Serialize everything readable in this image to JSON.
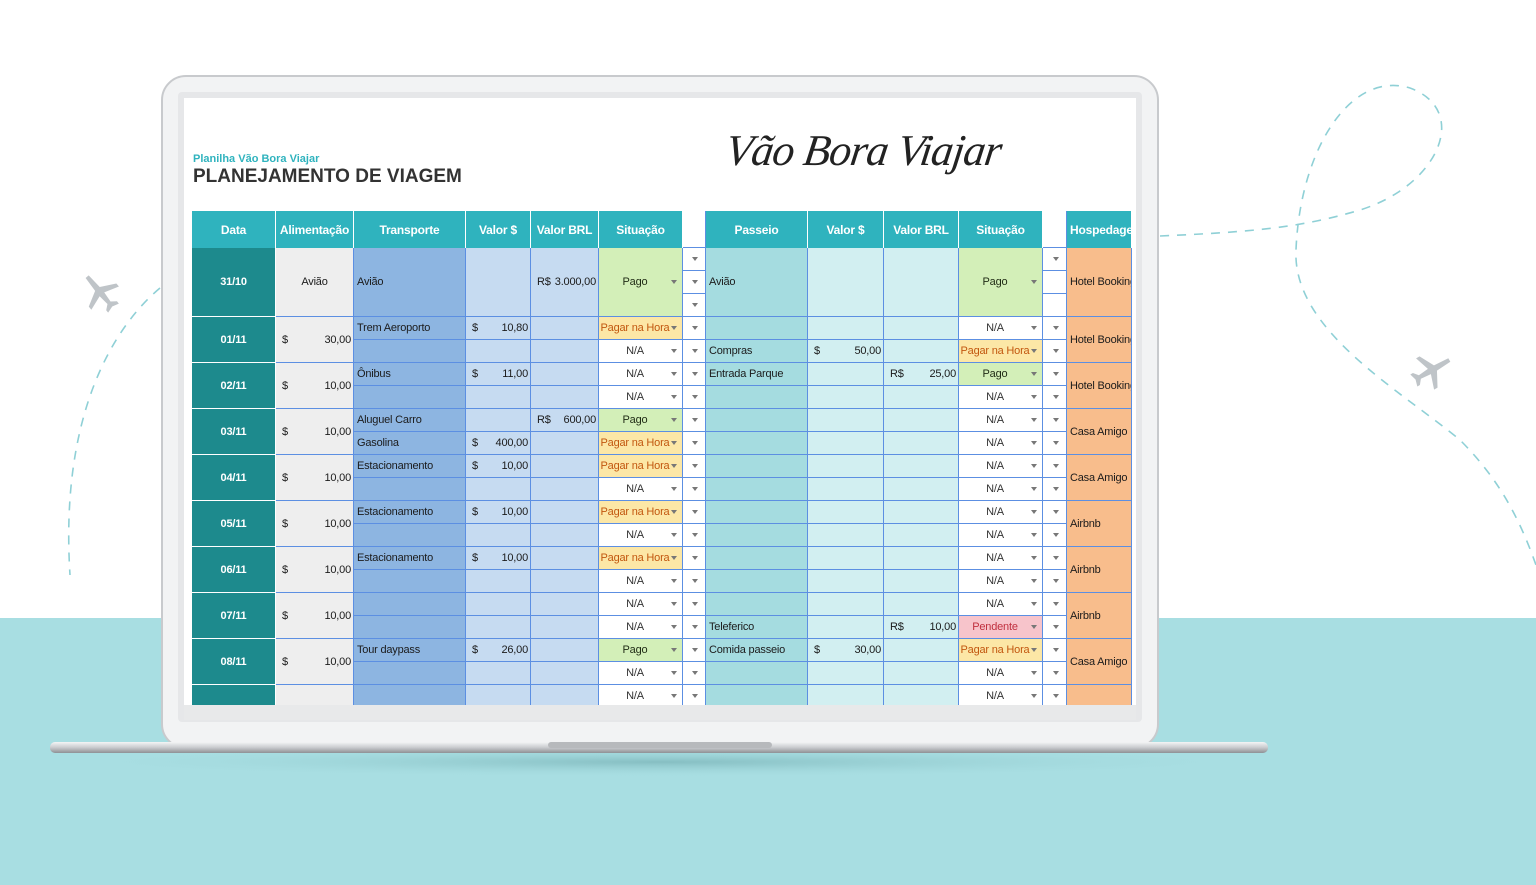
{
  "header": {
    "subtitle": "Planilha Vão Bora Viajar",
    "title": "PLANEJAMENTO DE VIAGEM",
    "logo": "Vão Bora Viajar"
  },
  "status_colors": {
    "Pago": {
      "bg": "#d3efb8",
      "fg": "#1f2a14"
    },
    "Pagar na Hora": {
      "bg": "#fce7a6",
      "fg": "#c2570f"
    },
    "N/A": {
      "bg": "#ffffff",
      "fg": "#333333"
    },
    "Pendente": {
      "bg": "#f7c4cb",
      "fg": "#c0303f"
    }
  },
  "table": {
    "columns": [
      "Data",
      "Alimentação",
      "Transporte",
      "Valor $",
      "Valor BRL",
      "Situação",
      "Passeio",
      "Valor $",
      "Valor BRL",
      "Situação",
      "Hospedagem"
    ],
    "rows": [
      {
        "date": "31/10",
        "alimentacao": "Avião",
        "hospedagem": "Hotel Booking",
        "lines": [
          {
            "transporte": "Avião",
            "valor_brl": {
              "currency": "R$",
              "amount": "3.000,00"
            },
            "situacao": "Pago",
            "passeio": "Avião",
            "passeio_situacao": "Pago"
          }
        ]
      },
      {
        "date": "01/11",
        "alimentacao": {
          "currency": "$",
          "amount": "30,00"
        },
        "hospedagem": "Hotel Booking",
        "lines": [
          {
            "transporte": "Trem Aeroporto",
            "valor_usd": {
              "currency": "$",
              "amount": "10,80"
            },
            "situacao": "Pagar na Hora",
            "passeio_situacao": "N/A"
          },
          {
            "situacao": "N/A",
            "passeio": "Compras",
            "passeio_valor_usd": {
              "currency": "$",
              "amount": "50,00"
            },
            "passeio_situacao": "Pagar na Hora"
          }
        ]
      },
      {
        "date": "02/11",
        "alimentacao": {
          "currency": "$",
          "amount": "10,00"
        },
        "hospedagem": "Hotel Booking",
        "lines": [
          {
            "transporte": "Ônibus",
            "valor_usd": {
              "currency": "$",
              "amount": "11,00"
            },
            "situacao": "N/A",
            "passeio": "Entrada Parque",
            "passeio_valor_brl": {
              "currency": "R$",
              "amount": "25,00"
            },
            "passeio_situacao": "Pago"
          },
          {
            "situacao": "N/A",
            "passeio_situacao": "N/A"
          }
        ]
      },
      {
        "date": "03/11",
        "alimentacao": {
          "currency": "$",
          "amount": "10,00"
        },
        "hospedagem": "Casa Amigo",
        "lines": [
          {
            "transporte": "Aluguel Carro",
            "valor_brl": {
              "currency": "R$",
              "amount": "600,00"
            },
            "situacao": "Pago",
            "passeio_situacao": "N/A"
          },
          {
            "transporte": "Gasolina",
            "valor_usd": {
              "currency": "$",
              "amount": "400,00"
            },
            "situacao": "Pagar na Hora",
            "passeio_situacao": "N/A"
          }
        ]
      },
      {
        "date": "04/11",
        "alimentacao": {
          "currency": "$",
          "amount": "10,00"
        },
        "hospedagem": "Casa Amigo",
        "lines": [
          {
            "transporte": "Estacionamento",
            "valor_usd": {
              "currency": "$",
              "amount": "10,00"
            },
            "situacao": "Pagar na Hora",
            "passeio_situacao": "N/A"
          },
          {
            "situacao": "N/A",
            "passeio_situacao": "N/A"
          }
        ]
      },
      {
        "date": "05/11",
        "alimentacao": {
          "currency": "$",
          "amount": "10,00"
        },
        "hospedagem": "Airbnb",
        "lines": [
          {
            "transporte": "Estacionamento",
            "valor_usd": {
              "currency": "$",
              "amount": "10,00"
            },
            "situacao": "Pagar na Hora",
            "passeio_situacao": "N/A"
          },
          {
            "situacao": "N/A",
            "passeio_situacao": "N/A"
          }
        ]
      },
      {
        "date": "06/11",
        "alimentacao": {
          "currency": "$",
          "amount": "10,00"
        },
        "hospedagem": "Airbnb",
        "lines": [
          {
            "transporte": "Estacionamento",
            "valor_usd": {
              "currency": "$",
              "amount": "10,00"
            },
            "situacao": "Pagar na Hora",
            "passeio_situacao": "N/A"
          },
          {
            "situacao": "N/A",
            "passeio_situacao": "N/A"
          }
        ]
      },
      {
        "date": "07/11",
        "alimentacao": {
          "currency": "$",
          "amount": "10,00"
        },
        "hospedagem": "Airbnb",
        "lines": [
          {
            "situacao": "N/A",
            "passeio_situacao": "N/A"
          },
          {
            "situacao": "N/A",
            "passeio": "Teleferico",
            "passeio_valor_brl": {
              "currency": "R$",
              "amount": "10,00"
            },
            "passeio_situacao": "Pendente"
          }
        ]
      },
      {
        "date": "08/11",
        "alimentacao": {
          "currency": "$",
          "amount": "10,00"
        },
        "hospedagem": "Casa Amigo",
        "lines": [
          {
            "transporte": "Tour daypass",
            "valor_usd": {
              "currency": "$",
              "amount": "26,00"
            },
            "situacao": "Pago",
            "passeio": "Comida passeio",
            "passeio_valor_usd": {
              "currency": "$",
              "amount": "30,00"
            },
            "passeio_situacao": "Pagar na Hora"
          },
          {
            "situacao": "N/A",
            "passeio_situacao": "N/A"
          }
        ]
      },
      {
        "lines": [
          {
            "situacao": "N/A",
            "passeio_situacao": "N/A"
          }
        ]
      }
    ]
  }
}
